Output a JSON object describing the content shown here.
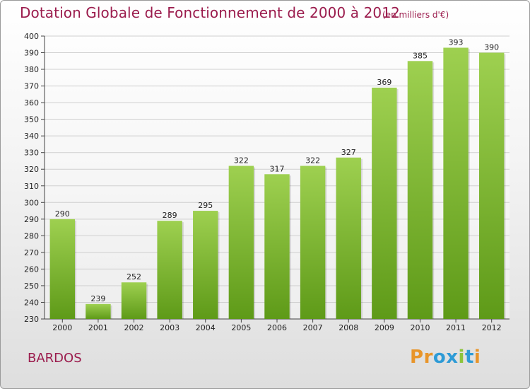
{
  "title": "Dotation Globale de Fonctionnement de 2000 à 2012",
  "subtitle": "(en milliers d'€)",
  "place": "BARDOS",
  "logo": {
    "text": "Proxiti",
    "letters": [
      "P",
      "r",
      "o",
      "x",
      "i",
      "t",
      "i"
    ],
    "colors": [
      "#e8952a",
      "#e8952a",
      "#2e9bd6",
      "#2e9bd6",
      "#8cc43c",
      "#2e9bd6",
      "#e8952a"
    ]
  },
  "colors": {
    "title": "#9b1c4d",
    "bar_top": "#9ed050",
    "bar_bottom": "#5e9a18",
    "grid": "#cfcfcf"
  },
  "chart_data": {
    "type": "bar",
    "title": "Dotation Globale de Fonctionnement de 2000 à 2012",
    "subtitle": "(en milliers d'€)",
    "xlabel": "",
    "ylabel": "",
    "categories": [
      "2000",
      "2001",
      "2002",
      "2003",
      "2004",
      "2005",
      "2006",
      "2007",
      "2008",
      "2009",
      "2010",
      "2011",
      "2012"
    ],
    "values": [
      290,
      239,
      252,
      289,
      295,
      322,
      317,
      322,
      327,
      369,
      385,
      393,
      390
    ],
    "ylim": [
      230,
      400
    ],
    "yticks": [
      230,
      240,
      250,
      260,
      270,
      280,
      290,
      300,
      310,
      320,
      330,
      340,
      350,
      360,
      370,
      380,
      390,
      400
    ],
    "grid": true,
    "data_labels": true
  }
}
